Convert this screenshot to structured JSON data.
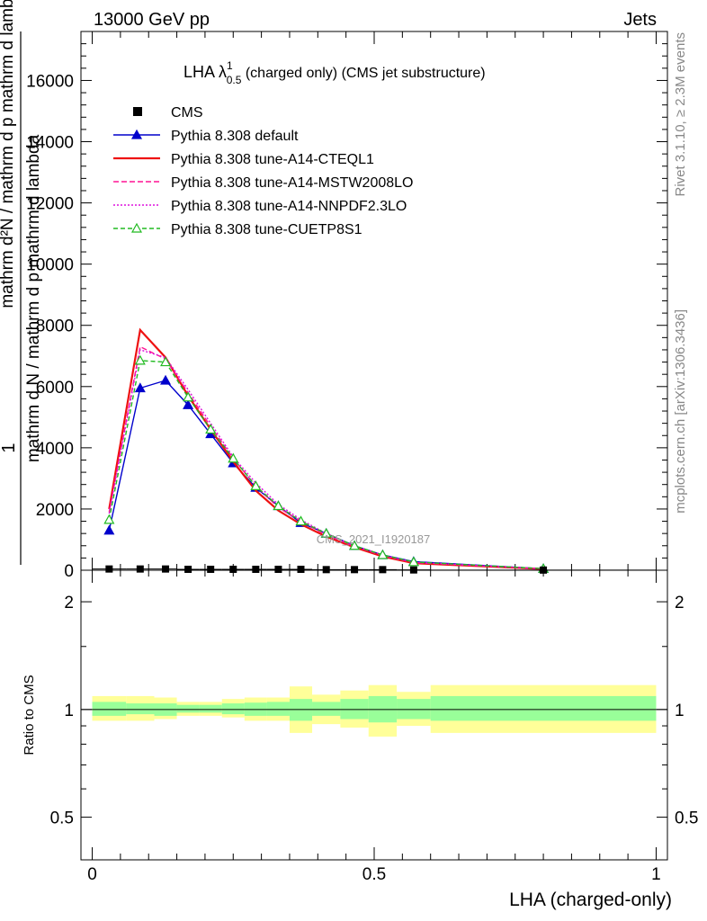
{
  "header": {
    "energy_label": "13000 GeV pp",
    "category_label": "Jets",
    "plot_title_main": "LHA λ",
    "plot_title_sup": "1",
    "plot_title_sub": "0.5",
    "plot_title_rest": " (charged only) (CMS jet substructure)",
    "watermark": "CMS_2021_I1920187"
  },
  "side_labels": {
    "rivet": "Rivet 3.1.10, ≥ 2.3M events",
    "mcplots": "mcplots.cern.ch [arXiv:1306.3436]"
  },
  "axes": {
    "y_label_numerator": "1",
    "y_label_denominator": "mathrm d N / mathrm d p mathrm d lambda",
    "y_label_overlay": "mathrm d²N / mathrm d p mathrm d lambda",
    "ratio_ylabel": "Ratio to CMS",
    "xlabel": "LHA (charged-only)"
  },
  "colors": {
    "data": "#000000",
    "default": "#0000cc",
    "cteql1": "#ee1111",
    "mstw": "#ff1493",
    "nnpdf": "#dd11dd",
    "cuetp8s1": "#22bb22",
    "band_inner": "#99ff99",
    "band_outer": "#ffff99"
  },
  "chart_data": [
    {
      "type": "line",
      "title": "LHA λ^1_0.5 (charged only) (CMS jet substructure)",
      "xlim": [
        -0.02,
        1.02
      ],
      "ylim": [
        0,
        17600
      ],
      "yticks": [
        0,
        2000,
        4000,
        6000,
        8000,
        10000,
        12000,
        14000,
        16000
      ],
      "ytick_labels": [
        "0",
        "2000",
        "4000",
        "6000",
        "8000",
        "10000",
        "12000",
        "14000",
        "16000"
      ],
      "legend_position": "top-left",
      "x": [
        0.03,
        0.085,
        0.13,
        0.17,
        0.21,
        0.25,
        0.29,
        0.33,
        0.37,
        0.415,
        0.465,
        0.515,
        0.57,
        0.8
      ],
      "bin_edges": [
        0.0,
        0.06,
        0.11,
        0.15,
        0.19,
        0.23,
        0.27,
        0.31,
        0.35,
        0.39,
        0.44,
        0.49,
        0.54,
        0.6,
        1.0
      ],
      "data_values": [
        40,
        40,
        40,
        30,
        30,
        30,
        30,
        30,
        30,
        20,
        20,
        20,
        10,
        5
      ],
      "series": [
        {
          "name": "CMS",
          "key": "data",
          "marker": "square"
        },
        {
          "name": "Pythia 8.308 default",
          "key": "default",
          "marker": "triangle-filled",
          "dash": "",
          "values": [
            1300,
            5950,
            6200,
            5400,
            4450,
            3500,
            2700,
            2100,
            1550,
            1200,
            800,
            500,
            280,
            50
          ]
        },
        {
          "name": "Pythia 8.308 tune-A14-CTEQL1",
          "key": "cteql1",
          "marker": "",
          "dash": "",
          "values": [
            2000,
            7850,
            6950,
            5700,
            4600,
            3550,
            2600,
            1950,
            1500,
            1100,
            750,
            450,
            230,
            40
          ]
        },
        {
          "name": "Pythia 8.308 tune-A14-MSTW2008LO",
          "key": "mstw",
          "marker": "",
          "dash": "6,3",
          "values": [
            1900,
            7300,
            6900,
            5800,
            4700,
            3650,
            2750,
            2050,
            1600,
            1150,
            780,
            480,
            250,
            45
          ]
        },
        {
          "name": "Pythia 8.308 tune-A14-NNPDF2.3LO",
          "key": "nnpdf",
          "marker": "",
          "dash": "2,2",
          "values": [
            1850,
            7200,
            6950,
            5900,
            4800,
            3700,
            2850,
            2150,
            1650,
            1200,
            800,
            500,
            260,
            45
          ]
        },
        {
          "name": "Pythia 8.308 tune-CUETP8S1",
          "key": "cuetp8s1",
          "marker": "triangle-open",
          "dash": "5,3",
          "values": [
            1650,
            6850,
            6800,
            5650,
            4600,
            3650,
            2750,
            2100,
            1600,
            1200,
            800,
            500,
            270,
            50
          ]
        }
      ]
    },
    {
      "type": "area",
      "ylabel": "Ratio to CMS",
      "xlabel": "LHA (charged-only)",
      "xlim": [
        -0.02,
        1.02
      ],
      "ylim": [
        0.38,
        2.45
      ],
      "ylog": true,
      "yticks": [
        0.5,
        1,
        2
      ],
      "ytick_labels": [
        "0.5",
        "1",
        "2"
      ],
      "xticks": [
        0,
        0.5,
        1
      ],
      "xtick_labels": [
        "0",
        "0.5",
        "1"
      ],
      "bin_edges": [
        0.0,
        0.06,
        0.11,
        0.15,
        0.19,
        0.23,
        0.27,
        0.31,
        0.35,
        0.39,
        0.44,
        0.49,
        0.54,
        0.6,
        1.0
      ],
      "stat_band": [
        [
          0.96,
          1.05
        ],
        [
          0.97,
          1.04
        ],
        [
          0.96,
          1.04
        ],
        [
          0.98,
          1.03
        ],
        [
          0.98,
          1.03
        ],
        [
          0.97,
          1.04
        ],
        [
          0.96,
          1.045
        ],
        [
          0.96,
          1.05
        ],
        [
          0.93,
          1.07
        ],
        [
          0.96,
          1.05
        ],
        [
          0.94,
          1.07
        ],
        [
          0.92,
          1.09
        ],
        [
          0.94,
          1.07
        ],
        [
          0.93,
          1.09
        ]
      ],
      "total_band": [
        [
          0.93,
          1.09
        ],
        [
          0.93,
          1.09
        ],
        [
          0.94,
          1.08
        ],
        [
          0.96,
          1.05
        ],
        [
          0.96,
          1.05
        ],
        [
          0.95,
          1.07
        ],
        [
          0.93,
          1.08
        ],
        [
          0.93,
          1.08
        ],
        [
          0.86,
          1.16
        ],
        [
          0.91,
          1.1
        ],
        [
          0.89,
          1.13
        ],
        [
          0.84,
          1.17
        ],
        [
          0.9,
          1.12
        ],
        [
          0.86,
          1.17
        ]
      ]
    }
  ]
}
